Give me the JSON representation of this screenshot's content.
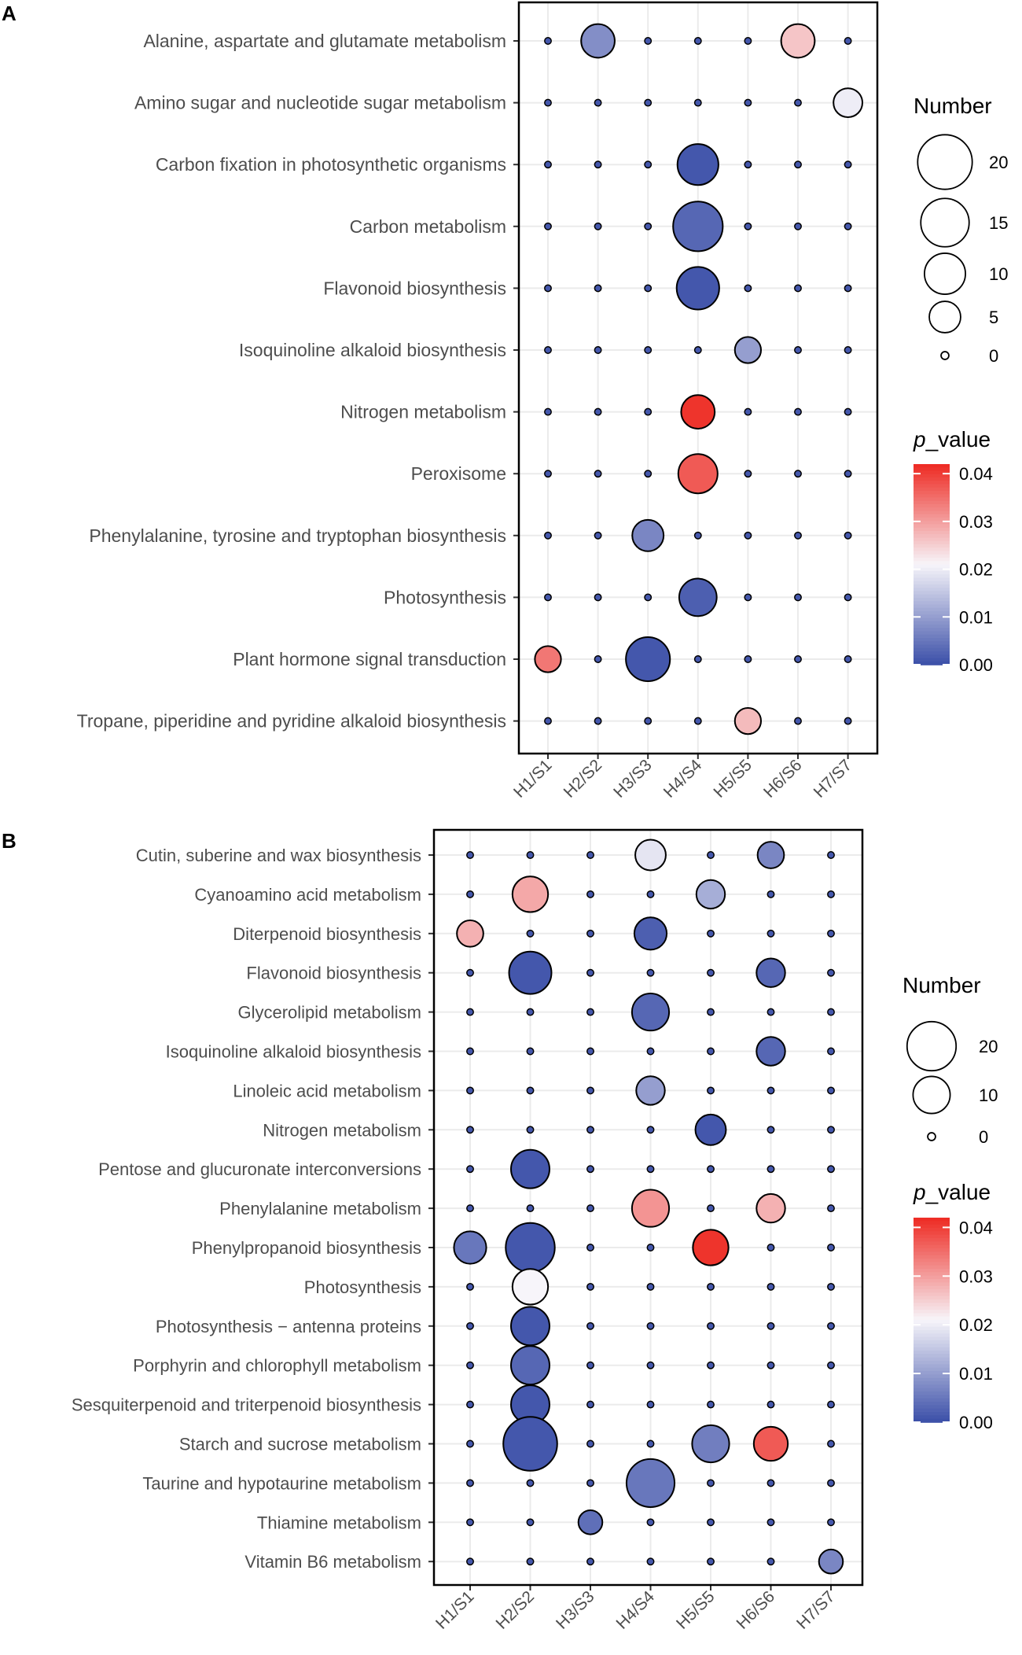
{
  "figure": {
    "x_categories": [
      "H1/S1",
      "H2/S2",
      "H3/S3",
      "H4/S4",
      "H5/S5",
      "H6/S6",
      "H7/S7"
    ],
    "color_scale": {
      "low": "#3B4FA8",
      "mid": "#F7F5FA",
      "high": "#EE2A22"
    }
  },
  "chart_data": [
    {
      "type": "scatter",
      "panel_label": "A",
      "title": "",
      "xlabel": "",
      "ylabel": "",
      "size_legend": {
        "title": "Number",
        "entries": [
          20,
          15,
          10,
          5,
          0
        ],
        "labels": [
          "20",
          "15",
          "10",
          "5",
          "0"
        ]
      },
      "color_legend": {
        "title_italic": "p",
        "title_rest": "_value",
        "range": [
          0,
          0.042
        ],
        "ticks": [
          0.04,
          0.03,
          0.02,
          0.01,
          0.0
        ],
        "tick_labels": [
          "0.04",
          "0.03",
          "0.02",
          "0.01",
          "0.00"
        ]
      },
      "x_categories": [
        "H1/S1",
        "H2/S2",
        "H3/S3",
        "H4/S4",
        "H5/S5",
        "H6/S6",
        "H7/S7"
      ],
      "y_categories": [
        "Alanine, aspartate and glutamate metabolism",
        "Amino sugar and nucleotide sugar metabolism",
        "Carbon fixation in photosynthetic organisms",
        "Carbon metabolism",
        "Flavonoid biosynthesis",
        "Isoquinoline alkaloid biosynthesis",
        "Nitrogen metabolism",
        "Peroxisome",
        "Phenylalanine, tyrosine and tryptophan biosynthesis",
        "Photosynthesis",
        "Plant hormone signal transduction",
        "Tropane, piperidine and pyridine alkaloid biosynthesis"
      ],
      "points": [
        {
          "x": "H2/S2",
          "y": "Alanine, aspartate and glutamate metabolism",
          "number": 6,
          "p_value": 0.008
        },
        {
          "x": "H6/S6",
          "y": "Alanine, aspartate and glutamate metabolism",
          "number": 6,
          "p_value": 0.026
        },
        {
          "x": "H7/S7",
          "y": "Amino sugar and nucleotide sugar metabolism",
          "number": 4,
          "p_value": 0.02
        },
        {
          "x": "H4/S4",
          "y": "Carbon fixation in photosynthetic organisms",
          "number": 10,
          "p_value": 0.001
        },
        {
          "x": "H4/S4",
          "y": "Carbon metabolism",
          "number": 16,
          "p_value": 0.003
        },
        {
          "x": "H4/S4",
          "y": "Flavonoid biosynthesis",
          "number": 11,
          "p_value": 0.001
        },
        {
          "x": "H5/S5",
          "y": "Isoquinoline alkaloid biosynthesis",
          "number": 3,
          "p_value": 0.01
        },
        {
          "x": "H4/S4",
          "y": "Nitrogen metabolism",
          "number": 6,
          "p_value": 0.041
        },
        {
          "x": "H4/S4",
          "y": "Peroxisome",
          "number": 9,
          "p_value": 0.037
        },
        {
          "x": "H3/S3",
          "y": "Phenylalanine, tyrosine and tryptophan biosynthesis",
          "number": 5,
          "p_value": 0.007
        },
        {
          "x": "H4/S4",
          "y": "Photosynthesis",
          "number": 8,
          "p_value": 0.002
        },
        {
          "x": "H1/S1",
          "y": "Plant hormone signal transduction",
          "number": 3,
          "p_value": 0.034
        },
        {
          "x": "H3/S3",
          "y": "Plant hormone signal transduction",
          "number": 12,
          "p_value": 0.001
        },
        {
          "x": "H5/S5",
          "y": "Tropane, piperidine and pyridine alkaloid biosynthesis",
          "number": 3,
          "p_value": 0.027
        }
      ]
    },
    {
      "type": "scatter",
      "panel_label": "B",
      "title": "",
      "xlabel": "",
      "ylabel": "",
      "size_legend": {
        "title": "Number",
        "entries": [
          20,
          10,
          0
        ],
        "labels": [
          "20",
          "10",
          "0"
        ]
      },
      "color_legend": {
        "title_italic": "p",
        "title_rest": "_value",
        "range": [
          0,
          0.042
        ],
        "ticks": [
          0.04,
          0.03,
          0.02,
          0.01,
          0.0
        ],
        "tick_labels": [
          "0.04",
          "0.03",
          "0.02",
          "0.01",
          "0.00"
        ]
      },
      "x_categories": [
        "H1/S1",
        "H2/S2",
        "H3/S3",
        "H4/S4",
        "H5/S5",
        "H6/S6",
        "H7/S7"
      ],
      "y_categories": [
        "Cutin, suberine and wax biosynthesis",
        "Cyanoamino acid metabolism",
        "Diterpenoid biosynthesis",
        "Flavonoid biosynthesis",
        "Glycerolipid metabolism",
        "Isoquinoline alkaloid biosynthesis",
        "Linoleic acid metabolism",
        "Nitrogen metabolism",
        "Pentose and glucuronate interconversions",
        "Phenylalanine metabolism",
        "Phenylpropanoid biosynthesis",
        "Photosynthesis",
        "Photosynthesis − antenna proteins",
        "Porphyrin and chlorophyll metabolism",
        "Sesquiterpenoid and triterpenoid biosynthesis",
        "Starch and sucrose metabolism",
        "Taurine and hypotaurine metabolism",
        "Thiamine metabolism",
        "Vitamin B6 metabolism"
      ],
      "points": [
        {
          "x": "H4/S4",
          "y": "Cutin, suberine and wax biosynthesis",
          "number": 6,
          "p_value": 0.019
        },
        {
          "x": "H6/S6",
          "y": "Cutin, suberine and wax biosynthesis",
          "number": 4,
          "p_value": 0.007
        },
        {
          "x": "H2/S2",
          "y": "Cyanoamino acid metabolism",
          "number": 9,
          "p_value": 0.029
        },
        {
          "x": "H5/S5",
          "y": "Cyanoamino acid metabolism",
          "number": 5,
          "p_value": 0.012
        },
        {
          "x": "H1/S1",
          "y": "Diterpenoid biosynthesis",
          "number": 4,
          "p_value": 0.028
        },
        {
          "x": "H4/S4",
          "y": "Diterpenoid biosynthesis",
          "number": 7,
          "p_value": 0.002
        },
        {
          "x": "H2/S2",
          "y": "Flavonoid biosynthesis",
          "number": 14,
          "p_value": 0.001
        },
        {
          "x": "H6/S6",
          "y": "Flavonoid biosynthesis",
          "number": 5,
          "p_value": 0.003
        },
        {
          "x": "H4/S4",
          "y": "Glycerolipid metabolism",
          "number": 10,
          "p_value": 0.003
        },
        {
          "x": "H6/S6",
          "y": "Isoquinoline alkaloid biosynthesis",
          "number": 5,
          "p_value": 0.003
        },
        {
          "x": "H4/S4",
          "y": "Linoleic acid metabolism",
          "number": 5,
          "p_value": 0.01
        },
        {
          "x": "H5/S5",
          "y": "Nitrogen metabolism",
          "number": 6,
          "p_value": 0.001
        },
        {
          "x": "H2/S2",
          "y": "Pentose and glucuronate interconversions",
          "number": 11,
          "p_value": 0.001
        },
        {
          "x": "H4/S4",
          "y": "Phenylalanine metabolism",
          "number": 10,
          "p_value": 0.031
        },
        {
          "x": "H6/S6",
          "y": "Phenylalanine metabolism",
          "number": 5,
          "p_value": 0.028
        },
        {
          "x": "H1/S1",
          "y": "Phenylpropanoid biosynthesis",
          "number": 7,
          "p_value": 0.005
        },
        {
          "x": "H2/S2",
          "y": "Phenylpropanoid biosynthesis",
          "number": 20,
          "p_value": 0.001
        },
        {
          "x": "H5/S5",
          "y": "Phenylpropanoid biosynthesis",
          "number": 9,
          "p_value": 0.041
        },
        {
          "x": "H2/S2",
          "y": "Photosynthesis",
          "number": 9,
          "p_value": 0.021
        },
        {
          "x": "H2/S2",
          "y": "Photosynthesis − antenna proteins",
          "number": 11,
          "p_value": 0.001
        },
        {
          "x": "H2/S2",
          "y": "Porphyrin and chlorophyll metabolism",
          "number": 11,
          "p_value": 0.003
        },
        {
          "x": "H2/S2",
          "y": "Sesquiterpenoid and triterpenoid biosynthesis",
          "number": 11,
          "p_value": 0.001
        },
        {
          "x": "H2/S2",
          "y": "Starch and sucrose metabolism",
          "number": 25,
          "p_value": 0.001
        },
        {
          "x": "H5/S5",
          "y": "Starch and sucrose metabolism",
          "number": 10,
          "p_value": 0.006
        },
        {
          "x": "H6/S6",
          "y": "Starch and sucrose metabolism",
          "number": 8,
          "p_value": 0.037
        },
        {
          "x": "H4/S4",
          "y": "Taurine and hypotaurine metabolism",
          "number": 19,
          "p_value": 0.005
        },
        {
          "x": "H3/S3",
          "y": "Thiamine metabolism",
          "number": 3,
          "p_value": 0.004
        },
        {
          "x": "H7/S7",
          "y": "Vitamin B6 metabolism",
          "number": 3,
          "p_value": 0.007
        }
      ]
    }
  ]
}
